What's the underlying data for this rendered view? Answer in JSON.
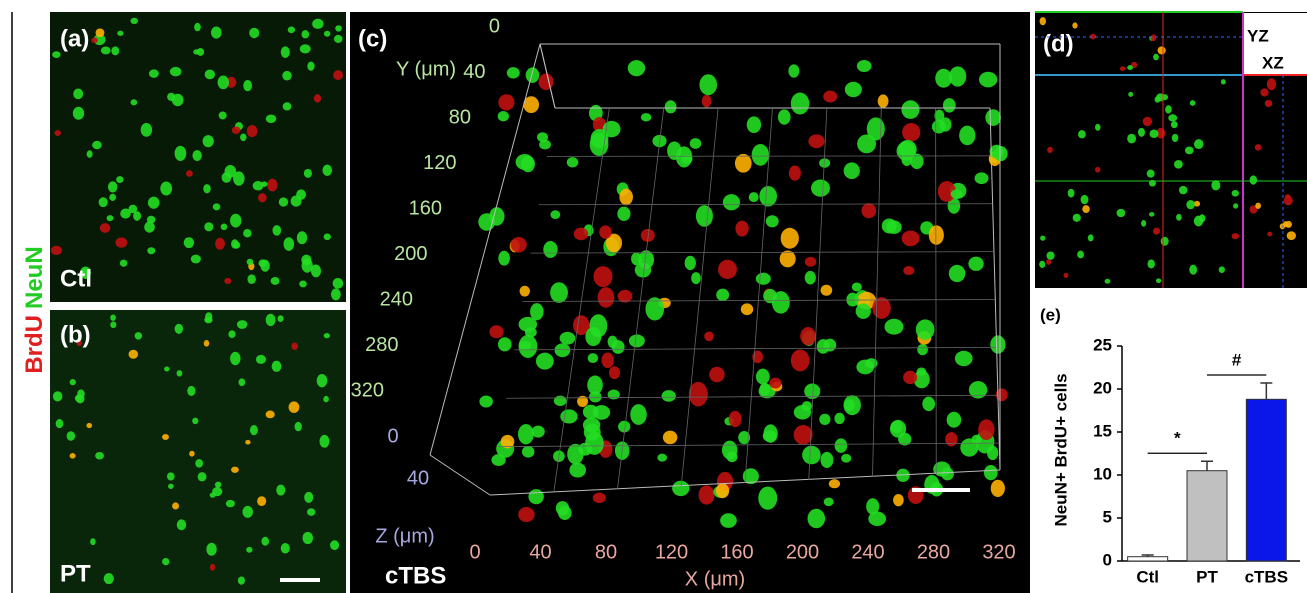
{
  "side_label": {
    "red": "BrdU",
    "green": "NeuN"
  },
  "panels": {
    "a": {
      "label": "(a)",
      "caption": "Ctl"
    },
    "b": {
      "label": "(b)",
      "caption": "PT"
    },
    "c": {
      "label": "(c)",
      "caption": "cTBS",
      "y_axis": "Y (μm)",
      "y_ticks": [
        "0",
        "40",
        "80",
        "120",
        "160",
        "200",
        "240",
        "280",
        "320"
      ],
      "z_axis": "Z (μm)",
      "z_ticks": [
        "0",
        "40"
      ],
      "x_axis": "X (μm)",
      "x_ticks": [
        "0",
        "40",
        "80",
        "120",
        "160",
        "200",
        "240",
        "280",
        "320"
      ]
    },
    "d": {
      "label": "(d)",
      "yz": "YZ",
      "xz": "XZ"
    },
    "e": {
      "label": "(e)"
    }
  },
  "chart_data": {
    "type": "bar",
    "y_label": "NeuN+ BrdU+ cells",
    "categories": [
      "Ctl",
      "PT",
      "cTBS"
    ],
    "values": [
      0.5,
      10.5,
      18.8
    ],
    "errors": [
      0.2,
      1.1,
      1.9
    ],
    "colors": [
      "#ffffff",
      "#c0c0c0",
      "#0a17e8"
    ],
    "ylim": [
      0,
      25
    ],
    "yticks": [
      0,
      5,
      10,
      15,
      20,
      25
    ],
    "annotations": [
      "*",
      "#"
    ]
  }
}
